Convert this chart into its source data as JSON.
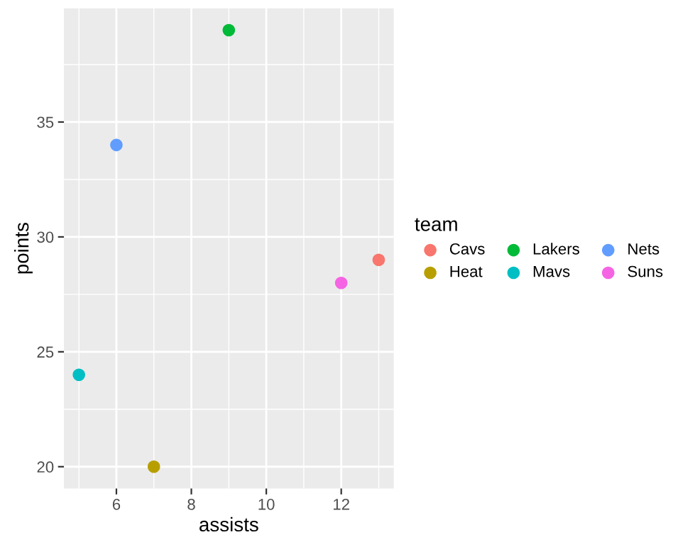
{
  "chart_data": {
    "type": "scatter",
    "xlabel": "assists",
    "ylabel": "points",
    "legend_title": "team",
    "legend": "right",
    "grid": true,
    "marker": "circle",
    "xlim": [
      4.6,
      13.4
    ],
    "xticks": [
      6,
      8,
      10,
      12
    ],
    "ylim": [
      19.05,
      39.95
    ],
    "yticks": [
      20,
      25,
      30,
      35
    ],
    "series": [
      {
        "name": "Cavs",
        "color": "#f8766d",
        "x": [
          13
        ],
        "values": [
          29
        ]
      },
      {
        "name": "Heat",
        "color": "#b79f00",
        "x": [
          7
        ],
        "values": [
          20
        ]
      },
      {
        "name": "Lakers",
        "color": "#00ba38",
        "x": [
          9
        ],
        "values": [
          39
        ]
      },
      {
        "name": "Mavs",
        "color": "#00bfc4",
        "x": [
          5
        ],
        "values": [
          24
        ]
      },
      {
        "name": "Nets",
        "color": "#619cff",
        "x": [
          6
        ],
        "values": [
          34
        ]
      },
      {
        "name": "Suns",
        "color": "#f564e3",
        "x": [
          12
        ],
        "values": [
          28
        ]
      }
    ]
  }
}
